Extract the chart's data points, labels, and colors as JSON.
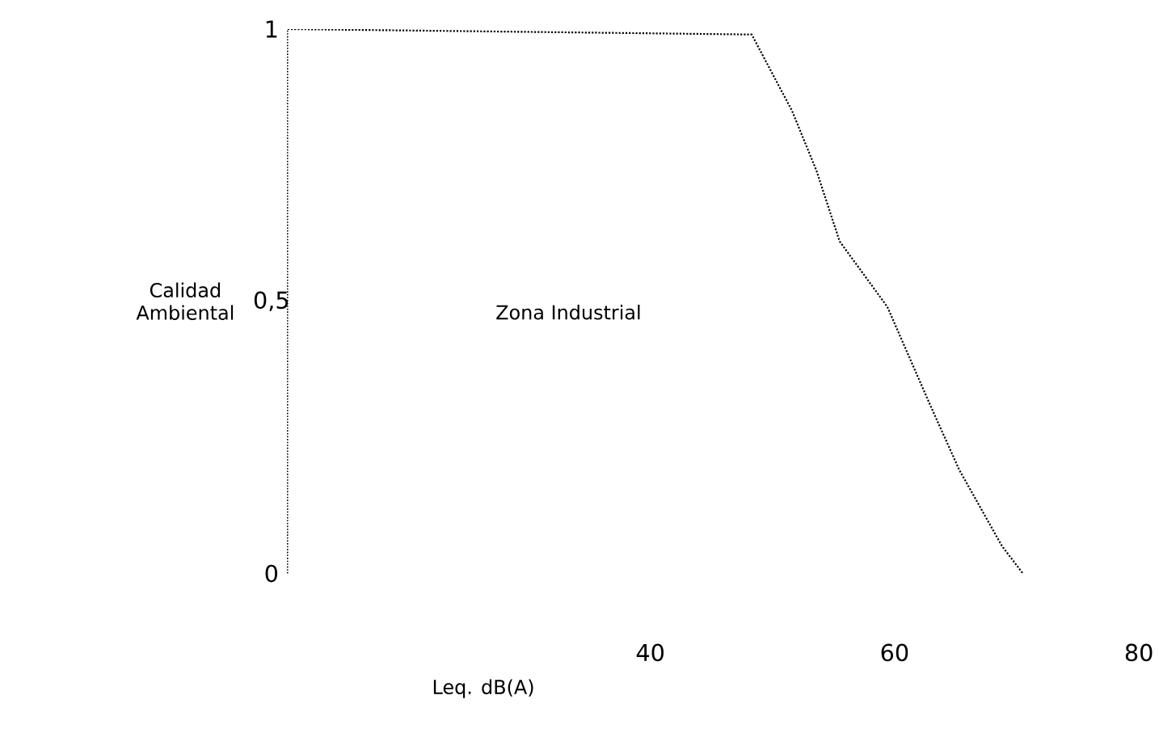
{
  "chart_data": {
    "type": "line",
    "xlabel": "Leq. dB(A)",
    "ylabel": "Calidad Ambiental",
    "annotations": [
      "Zona Industrial"
    ],
    "xlim": [
      10.3,
      80
    ],
    "ylim": [
      0,
      1
    ],
    "xticks": [
      40,
      60,
      80
    ],
    "yticks": [
      0,
      {
        "value": 0.5,
        "label": "0,5"
      },
      1
    ],
    "series": [
      {
        "color": "#000000",
        "x": [
          10.3,
          48.3,
          51.6,
          53.6,
          55.5,
          59.4,
          62.9,
          65.3,
          68.8,
          70.5
        ],
        "values": [
          1.0,
          0.99,
          0.85,
          0.74,
          0.61,
          0.49,
          0.31,
          0.19,
          0.05,
          0.0
        ]
      }
    ],
    "line_style": "dotted",
    "marker": "none",
    "grid": false
  }
}
